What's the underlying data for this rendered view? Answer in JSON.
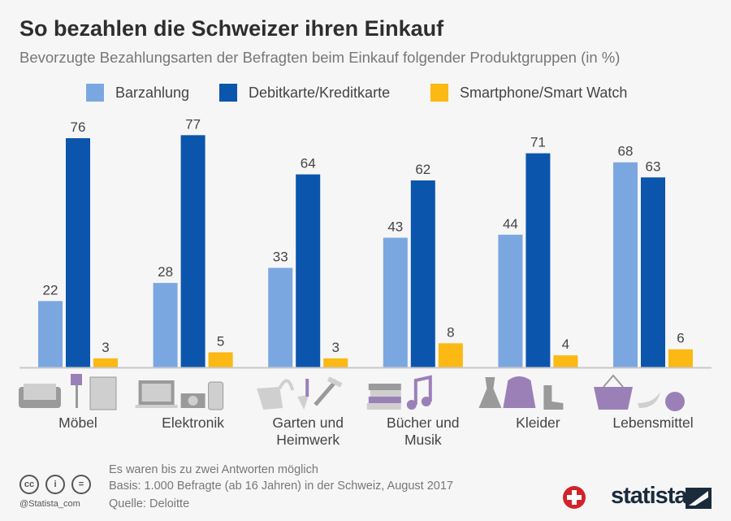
{
  "header": {
    "title": "So bezahlen die Schweizer ihren Einkauf",
    "subtitle": "Bevorzugte Bezahlungsarten der Befragten beim Einkauf folgender Produktgruppen (in %)"
  },
  "chart_data": {
    "type": "bar",
    "title": "So bezahlen die Schweizer ihren Einkauf",
    "subtitle": "Bevorzugte Bezahlungsarten der Befragten beim Einkauf folgender Produktgruppen (in %)",
    "categories": [
      "Möbel",
      "Elektronik",
      "Garten und Heimwerk",
      "Bücher und Musik",
      "Kleider",
      "Lebensmittel"
    ],
    "category_lines": [
      [
        "Möbel"
      ],
      [
        "Elektronik"
      ],
      [
        "Garten und",
        "Heimwerk"
      ],
      [
        "Bücher und",
        "Musik"
      ],
      [
        "Kleider"
      ],
      [
        "Lebensmittel"
      ]
    ],
    "series": [
      {
        "name": "Barzahlung",
        "color": "#7ba7e1",
        "values": [
          22,
          28,
          33,
          43,
          44,
          68
        ]
      },
      {
        "name": "Debitkarte/Kreditkarte",
        "color": "#0b55ad",
        "values": [
          76,
          77,
          64,
          62,
          71,
          63
        ]
      },
      {
        "name": "Smartphone/Smart Watch",
        "color": "#fcb813",
        "values": [
          3,
          5,
          3,
          8,
          4,
          6
        ]
      }
    ],
    "ylim": [
      0,
      80
    ],
    "grid": false,
    "legend_position": "top",
    "data_labels": true
  },
  "icons": [
    "sofa-lamp-cabinet-icon",
    "laptop-camera-phone-icon",
    "watering-can-shovel-hammer-icon",
    "books-music-note-icon",
    "dress-hoodie-boot-icon",
    "basket-banana-apple-icon"
  ],
  "footer": {
    "notes": [
      "Es waren bis zu zwei Antworten möglich",
      "Basis: 1.000 Befragte (ab 16 Jahren) in der Schweiz, August 2017",
      "Quelle: Deloitte"
    ],
    "license_icons": [
      "cc",
      "i",
      "="
    ],
    "handle": "@Statista_com",
    "brand": "statista"
  }
}
